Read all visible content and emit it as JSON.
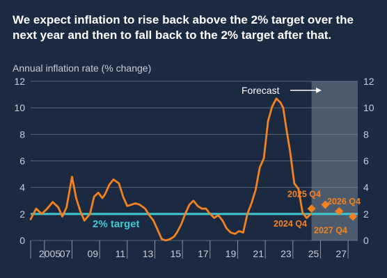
{
  "title": "We expect inflation to rise back above the 2% target over the next year and then to fall back to the 2% target after that.",
  "colors": {
    "background": "#1b2a41",
    "series": "#f58220",
    "target_line": "#3ec7d1",
    "forecast_band": "#5e6b7d",
    "text": "#c8cfd9"
  },
  "chart_data": {
    "type": "line",
    "title": "",
    "ylabel": "Annual inflation rate (% change)",
    "xlabel": "",
    "xlim": [
      2004.5,
      2028.2
    ],
    "ylim": [
      0,
      12
    ],
    "y_ticks": [
      0,
      2,
      4,
      6,
      8,
      10,
      12
    ],
    "x_ticks": [
      {
        "x": 2005,
        "label": "2005"
      },
      {
        "x": 2007,
        "label": "07"
      },
      {
        "x": 2009,
        "label": "09"
      },
      {
        "x": 2011,
        "label": "11"
      },
      {
        "x": 2013,
        "label": "13"
      },
      {
        "x": 2015,
        "label": "15"
      },
      {
        "x": 2017,
        "label": "17"
      },
      {
        "x": 2019,
        "label": "19"
      },
      {
        "x": 2021,
        "label": "21"
      },
      {
        "x": 2023,
        "label": "23"
      },
      {
        "x": 2025,
        "label": "25"
      },
      {
        "x": 2027,
        "label": "27"
      }
    ],
    "grid": true,
    "forecast": {
      "label": "Forecast",
      "start": 2024.85,
      "end": 2028.2
    },
    "target": {
      "label": "2% target",
      "value": 2
    },
    "series": [
      {
        "x": [
          2004.5,
          2004.9,
          2005.3,
          2005.7,
          2006.1,
          2006.5,
          2006.8,
          2007.1,
          2007.5,
          2007.8,
          2008.1,
          2008.4,
          2008.8,
          2009.1,
          2009.4,
          2009.7,
          2009.9,
          2010.2,
          2010.5,
          2010.9,
          2011.2,
          2011.5,
          2011.8,
          2012.1,
          2012.4,
          2012.8,
          2013.1,
          2013.4,
          2013.7,
          2014.0,
          2014.3,
          2014.6,
          2014.9,
          2015.1,
          2015.4,
          2015.7,
          2016.0,
          2016.3,
          2016.6,
          2016.9,
          2017.2,
          2017.5,
          2017.8,
          2018.1,
          2018.4,
          2018.7,
          2019.0,
          2019.3,
          2019.6,
          2019.9,
          2020.2,
          2020.5,
          2020.8,
          2021.1,
          2021.4,
          2021.7,
          2022.0,
          2022.3,
          2022.6,
          2022.8,
          2023.0,
          2023.3,
          2023.6,
          2023.9,
          2024.2,
          2024.5,
          2024.8
        ],
        "values": [
          1.6,
          2.4,
          2.0,
          2.4,
          2.9,
          2.5,
          1.8,
          2.5,
          4.8,
          3.2,
          2.2,
          1.5,
          2.0,
          3.3,
          3.6,
          3.2,
          3.5,
          4.2,
          4.6,
          4.3,
          3.3,
          2.6,
          2.7,
          2.8,
          2.7,
          2.4,
          1.9,
          1.5,
          0.8,
          0.1,
          0.0,
          0.1,
          0.3,
          0.6,
          1.2,
          2.0,
          2.7,
          3.0,
          2.6,
          2.4,
          2.4,
          2.0,
          1.7,
          1.9,
          1.5,
          0.9,
          0.6,
          0.5,
          0.7,
          0.6,
          2.0,
          2.8,
          3.8,
          5.5,
          6.2,
          9.0,
          10.1,
          10.7,
          10.4,
          10.0,
          8.6,
          6.7,
          4.3,
          3.9,
          2.1,
          1.7,
          2.0
        ]
      }
    ],
    "forecast_points": [
      {
        "x": 2024.85,
        "y": 2.4,
        "label": "2024 Q4"
      },
      {
        "x": 2025.85,
        "y": 2.7,
        "label": "2025 Q4"
      },
      {
        "x": 2026.85,
        "y": 2.2,
        "label": "2026 Q4"
      },
      {
        "x": 2027.85,
        "y": 1.8,
        "label": "2027 Q4"
      }
    ]
  }
}
